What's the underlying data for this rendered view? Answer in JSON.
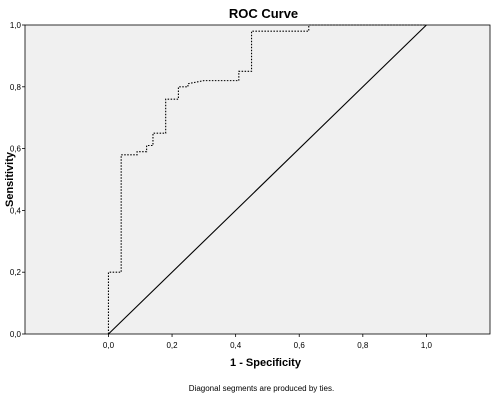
{
  "chart_data": {
    "type": "line",
    "title": "ROC Curve",
    "xlabel": "1 - Specificity",
    "ylabel": "Sensitivity",
    "xlim": [
      0,
      1
    ],
    "ylim": [
      0,
      1
    ],
    "x_range_shown": [
      -0.2625,
      1.2
    ],
    "x_ticks": [
      "0,0",
      "0,2",
      "0,4",
      "0,6",
      "0,8",
      "1,0"
    ],
    "y_ticks": [
      "0,0",
      "0,2",
      "0,4",
      "0,6",
      "0,8",
      "1,0"
    ],
    "grid": false,
    "background_color": "#f0f0f0",
    "series": [
      {
        "style": "dotted",
        "color": "#000000",
        "x": [
          0.0,
          0.0,
          0.04,
          0.04,
          0.09,
          0.09,
          0.12,
          0.12,
          0.14,
          0.14,
          0.18,
          0.18,
          0.22,
          0.22,
          0.25,
          0.25,
          0.3,
          0.41,
          0.41,
          0.45,
          0.45,
          0.63,
          0.63,
          1.0
        ],
        "y": [
          0.0,
          0.2,
          0.2,
          0.58,
          0.58,
          0.59,
          0.59,
          0.61,
          0.61,
          0.65,
          0.65,
          0.76,
          0.76,
          0.8,
          0.8,
          0.81,
          0.82,
          0.82,
          0.85,
          0.85,
          0.98,
          0.98,
          1.0,
          1.0
        ]
      },
      {
        "style": "solid",
        "color": "#000000",
        "x": [
          0,
          1
        ],
        "y": [
          0,
          1
        ]
      }
    ],
    "footnote": "Diagonal segments are produced by ties."
  }
}
